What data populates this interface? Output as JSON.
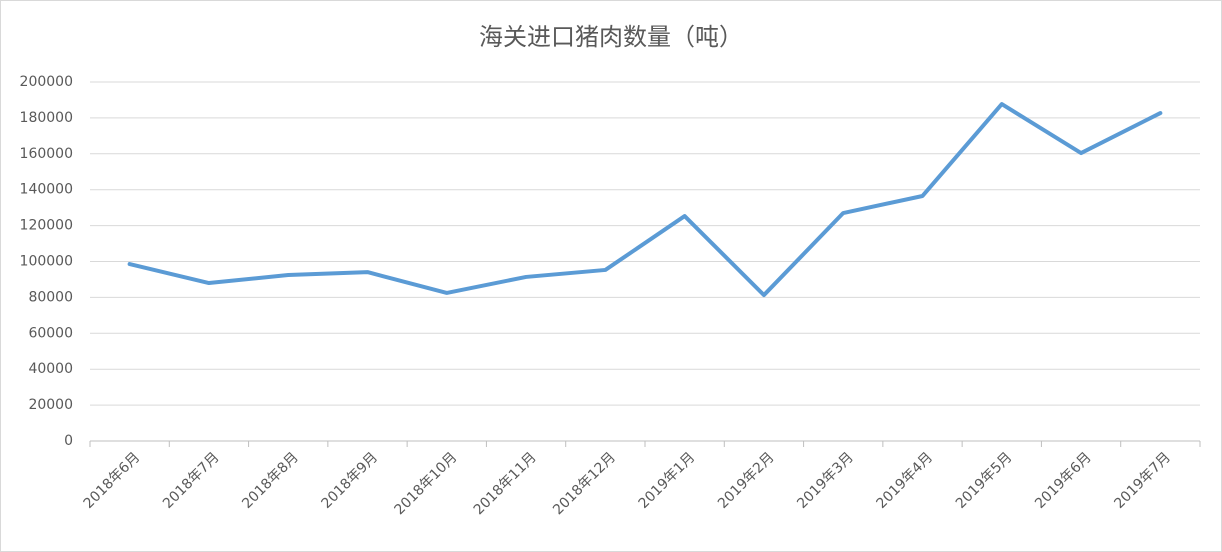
{
  "chart_data": {
    "type": "line",
    "title": "海关进口猪肉数量（吨）",
    "categories": [
      "2018年6月",
      "2018年7月",
      "2018年8月",
      "2018年9月",
      "2018年10月",
      "2018年11月",
      "2018年12月",
      "2019年1月",
      "2019年2月",
      "2019年3月",
      "2019年4月",
      "2019年5月",
      "2019年6月",
      "2019年7月"
    ],
    "series": [
      {
        "name": "海关进口猪肉数量（吨）",
        "color": "#5b9bd5",
        "values": [
          98600,
          88000,
          92500,
          94100,
          82500,
          91400,
          95300,
          125300,
          81300,
          127000,
          136500,
          187700,
          160400,
          182700
        ]
      }
    ],
    "ylim": [
      0,
      200000
    ],
    "yticks": [
      0,
      20000,
      40000,
      60000,
      80000,
      100000,
      120000,
      140000,
      160000,
      180000,
      200000
    ],
    "grid": true
  }
}
